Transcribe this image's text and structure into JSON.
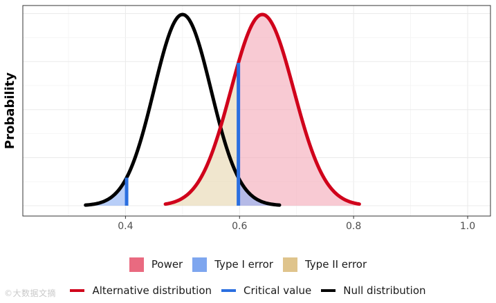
{
  "chart_data": {
    "type": "area",
    "title": "",
    "xlabel": "",
    "ylabel": "Probability",
    "xlim": [
      0.22,
      1.04
    ],
    "xticks": [
      0.4,
      0.6,
      0.8,
      1.0
    ],
    "xtick_labels": [
      "0.4",
      "0.6",
      "0.8",
      "1.0"
    ],
    "y_ticks_shown": false,
    "grid": true,
    "series": [
      {
        "name": "Null distribution",
        "kind": "normal",
        "mean": 0.5,
        "sd": 0.05,
        "x_range": [
          0.33,
          0.67
        ],
        "color": "#000000"
      },
      {
        "name": "Alternative distribution",
        "kind": "normal",
        "mean": 0.64,
        "sd": 0.055,
        "x_range": [
          0.47,
          0.81
        ],
        "color": "#d0021b"
      }
    ],
    "critical_values": [
      0.402,
      0.598
    ],
    "regions": [
      {
        "name": "Power",
        "curve": "Alternative distribution",
        "from": 0.598,
        "to": 0.81,
        "color": "#f3aab8"
      },
      {
        "name": "Type I error",
        "curve": "Null distribution",
        "tails": [
          [
            0.33,
            0.402
          ],
          [
            0.598,
            0.67
          ]
        ],
        "color": "#8db0f4"
      },
      {
        "name": "Type II error",
        "curve": "Alternative distribution",
        "from": 0.47,
        "to": 0.598,
        "color": "#e6d6b0"
      }
    ]
  },
  "legend": {
    "fills": [
      {
        "label": "Power",
        "color": "#e96a80"
      },
      {
        "label": "Type I error",
        "color": "#7ea6ef"
      },
      {
        "label": "Type II error",
        "color": "#dfc48c"
      }
    ],
    "lines": [
      {
        "label": "Alternative distribution",
        "color": "#d0021b"
      },
      {
        "label": "Critical value",
        "color": "#2b6fe0"
      },
      {
        "label": "Null distribution",
        "color": "#000000"
      }
    ]
  },
  "watermark": "©大数据文摘"
}
